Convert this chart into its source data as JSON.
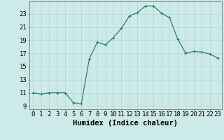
{
  "x": [
    0,
    1,
    2,
    3,
    4,
    5,
    6,
    7,
    8,
    9,
    10,
    11,
    12,
    13,
    14,
    15,
    16,
    17,
    18,
    19,
    20,
    21,
    22,
    23
  ],
  "y": [
    11,
    10.8,
    11,
    11,
    11,
    9.5,
    9.3,
    16.2,
    18.7,
    18.3,
    19.4,
    20.8,
    22.7,
    23.2,
    24.2,
    24.2,
    23.1,
    22.4,
    19.2,
    17.0,
    17.3,
    17.2,
    16.9,
    16.3
  ],
  "line_color": "#2e7d6e",
  "marker": "+",
  "marker_size": 3,
  "marker_lw": 0.8,
  "line_width": 0.9,
  "background_color": "#cceae7",
  "grid_color": "#b8d8d5",
  "xlabel": "Humidex (Indice chaleur)",
  "ylabel_ticks": [
    9,
    11,
    13,
    15,
    17,
    19,
    21,
    23
  ],
  "xlim": [
    -0.5,
    23.5
  ],
  "ylim": [
    8.5,
    24.9
  ],
  "xlabel_fontsize": 7.5,
  "tick_fontsize": 6.5
}
